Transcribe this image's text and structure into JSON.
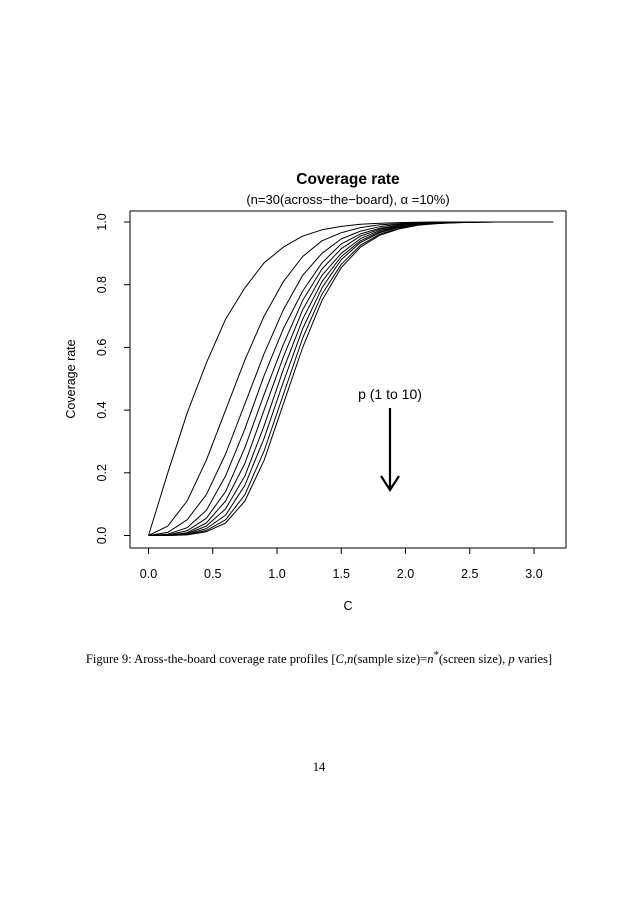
{
  "chart_data": {
    "type": "line",
    "title": "Coverage rate",
    "subtitle_prefix": "(n=30(across−the−board), ",
    "subtitle_alpha": "α",
    "subtitle_suffix": " =10%)",
    "xlabel": "C",
    "ylabel": "Coverage rate",
    "xlim": [
      0,
      3.15
    ],
    "ylim": [
      0,
      1
    ],
    "x_ticks": [
      "0.0",
      "0.5",
      "1.0",
      "1.5",
      "2.0",
      "2.5",
      "3.0"
    ],
    "y_ticks": [
      "0.0",
      "0.2",
      "0.4",
      "0.6",
      "0.8",
      "1.0"
    ],
    "annotation": "p (1 to 10)",
    "grid": false,
    "x": [
      0,
      0.15,
      0.3,
      0.45,
      0.6,
      0.75,
      0.9,
      1.05,
      1.2,
      1.35,
      1.5,
      1.65,
      1.8,
      1.95,
      2.1,
      2.25,
      2.4,
      2.55,
      2.7,
      2.85,
      3.0,
      3.15
    ],
    "series": [
      {
        "values": [
          0.0,
          0.2,
          0.39,
          0.55,
          0.69,
          0.79,
          0.87,
          0.92,
          0.955,
          0.975,
          0.986,
          0.993,
          0.996,
          0.998,
          0.999,
          1.0,
          1.0,
          1.0,
          1.0,
          1.0,
          1.0,
          1.0
        ]
      },
      {
        "values": [
          0.0,
          0.03,
          0.11,
          0.24,
          0.4,
          0.56,
          0.7,
          0.81,
          0.89,
          0.94,
          0.966,
          0.982,
          0.991,
          0.995,
          0.998,
          0.999,
          1.0,
          1.0,
          1.0,
          1.0,
          1.0,
          1.0
        ]
      },
      {
        "values": [
          0.0,
          0.01,
          0.05,
          0.13,
          0.26,
          0.42,
          0.58,
          0.72,
          0.83,
          0.9,
          0.946,
          0.971,
          0.985,
          0.993,
          0.997,
          0.999,
          1.0,
          1.0,
          1.0,
          1.0,
          1.0,
          1.0
        ]
      },
      {
        "values": [
          0.0,
          0.004,
          0.025,
          0.08,
          0.19,
          0.34,
          0.51,
          0.66,
          0.78,
          0.87,
          0.93,
          0.962,
          0.98,
          0.99,
          0.995,
          0.998,
          0.999,
          1.0,
          1.0,
          1.0,
          1.0,
          1.0
        ]
      },
      {
        "values": [
          0.0,
          0.002,
          0.015,
          0.055,
          0.14,
          0.28,
          0.45,
          0.61,
          0.75,
          0.85,
          0.915,
          0.955,
          0.977,
          0.989,
          0.995,
          0.998,
          0.999,
          1.0,
          1.0,
          1.0,
          1.0,
          1.0
        ]
      },
      {
        "values": [
          0.0,
          0.001,
          0.009,
          0.04,
          0.11,
          0.23,
          0.4,
          0.57,
          0.72,
          0.83,
          0.9,
          0.947,
          0.973,
          0.987,
          0.994,
          0.997,
          0.999,
          1.0,
          1.0,
          1.0,
          1.0,
          1.0
        ]
      },
      {
        "values": [
          0.0,
          0.0,
          0.006,
          0.03,
          0.085,
          0.19,
          0.35,
          0.53,
          0.69,
          0.81,
          0.89,
          0.94,
          0.969,
          0.985,
          0.993,
          0.997,
          0.999,
          1.0,
          1.0,
          1.0,
          1.0,
          1.0
        ]
      },
      {
        "values": [
          0.0,
          0.0,
          0.004,
          0.022,
          0.065,
          0.16,
          0.31,
          0.49,
          0.66,
          0.79,
          0.88,
          0.935,
          0.966,
          0.983,
          0.992,
          0.996,
          0.998,
          0.999,
          1.0,
          1.0,
          1.0,
          1.0
        ]
      },
      {
        "values": [
          0.0,
          0.0,
          0.003,
          0.016,
          0.05,
          0.13,
          0.27,
          0.45,
          0.63,
          0.77,
          0.865,
          0.926,
          0.961,
          0.98,
          0.991,
          0.996,
          0.998,
          0.999,
          1.0,
          1.0,
          1.0,
          1.0
        ]
      },
      {
        "values": [
          0.0,
          0.0,
          0.002,
          0.012,
          0.04,
          0.11,
          0.24,
          0.42,
          0.6,
          0.75,
          0.855,
          0.92,
          0.958,
          0.978,
          0.99,
          0.995,
          0.998,
          0.999,
          1.0,
          1.0,
          1.0,
          1.0
        ]
      }
    ]
  },
  "caption": {
    "prefix": "Figure 9: Aross-the-board coverage rate profiles [",
    "var_c": "C",
    "comma": ",",
    "var_n": "n",
    "mid": "(sample size)=",
    "var_nstar": "n",
    "star": "*",
    "tail": "(screen size), ",
    "var_p": "p",
    "end": " varies]"
  },
  "page_number": "14"
}
